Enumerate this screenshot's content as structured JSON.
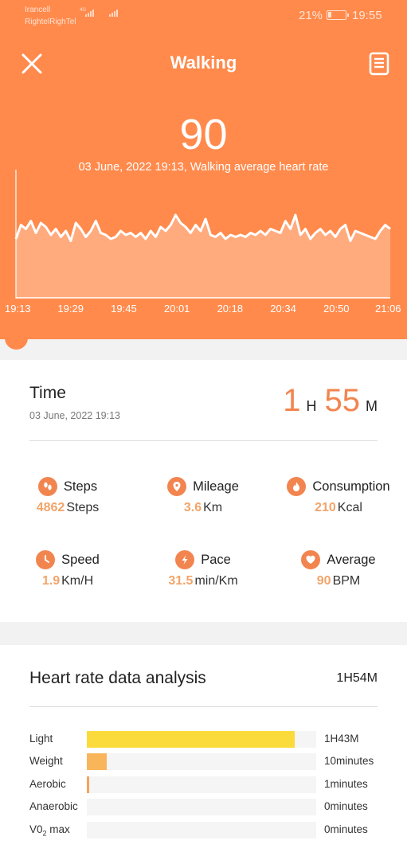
{
  "status_bar": {
    "carrier_1": "Irancell",
    "carrier_2": "RightelRighTel",
    "network_type": "4G",
    "battery_percent": "21%",
    "battery_level": 0.21,
    "time": "19:55"
  },
  "header": {
    "title": "Walking",
    "heart_rate_value": "90",
    "heart_rate_caption": "03 June, 2022 19:13, Walking average heart rate",
    "close_icon": "close-icon",
    "report_icon": "document-icon"
  },
  "chart_data": {
    "type": "area",
    "x_tick_labels": [
      "19:13",
      "19:29",
      "19:45",
      "20:01",
      "20:18",
      "20:34",
      "20:50",
      "21:06"
    ],
    "series": [
      {
        "values": [
          88,
          95,
          93,
          97,
          91,
          96,
          94,
          90,
          93,
          89,
          92,
          87,
          96,
          93,
          89,
          92,
          97,
          91,
          90,
          88,
          89,
          92,
          90,
          91,
          89,
          91,
          88,
          92,
          89,
          94,
          92,
          95,
          100,
          96,
          94,
          91,
          95,
          92,
          98,
          90,
          89,
          91,
          88,
          90,
          89,
          90,
          89,
          91,
          90,
          92,
          90,
          93,
          92,
          91,
          97,
          93,
          100,
          90,
          93,
          88,
          91,
          93,
          90,
          92,
          89,
          93,
          95,
          87,
          92,
          91,
          90,
          89,
          88,
          92,
          95,
          93
        ]
      }
    ],
    "colors": {
      "fill": "#ffb58f",
      "line": "#ffffff"
    }
  },
  "summary": {
    "time_label": "Time",
    "date": "03 June, 2022 19:13",
    "duration_hours": "1",
    "hours_unit": "H",
    "duration_minutes": "55",
    "minutes_unit": "M",
    "stats": [
      {
        "key": "steps",
        "label": "Steps",
        "value": "4862",
        "unit": "Steps",
        "icon": "footprints-icon"
      },
      {
        "key": "mileage",
        "label": "Mileage",
        "value": "3.6",
        "unit": "Km",
        "icon": "location-pin-icon"
      },
      {
        "key": "consumption",
        "label": "Consumption",
        "value": "210",
        "unit": "Kcal",
        "icon": "flame-icon"
      },
      {
        "key": "speed",
        "label": "Speed",
        "value": "1.9",
        "unit": "Km/H",
        "icon": "clock-icon"
      },
      {
        "key": "pace",
        "label": "Pace",
        "value": "31.5",
        "unit": "min/Km",
        "icon": "lightning-icon"
      },
      {
        "key": "average",
        "label": "Average",
        "value": "90",
        "unit": "BPM",
        "icon": "heart-icon"
      }
    ]
  },
  "hr_analysis": {
    "title": "Heart rate data analysis",
    "total": "1H54M",
    "zones": [
      {
        "name": "Light",
        "time": "1H43M",
        "fraction": 0.905,
        "color": "#fbdb3c"
      },
      {
        "name": "Weight",
        "time": "10minutes",
        "fraction": 0.088,
        "color": "#f9b55a"
      },
      {
        "name": "Aerobic",
        "time": "1minutes",
        "fraction": 0.009,
        "color": "#f5a45c"
      },
      {
        "name": "Anaerobic",
        "time": "0minutes",
        "fraction": 0,
        "color": "#f2854f"
      },
      {
        "name": "V0",
        "name_sub": "2",
        "name_rest": " max",
        "time": "0minutes",
        "fraction": 0,
        "color": "#ef6a3e"
      }
    ]
  },
  "colors": {
    "accent": "#ff8a4c",
    "value_accent": "#f2854f"
  }
}
